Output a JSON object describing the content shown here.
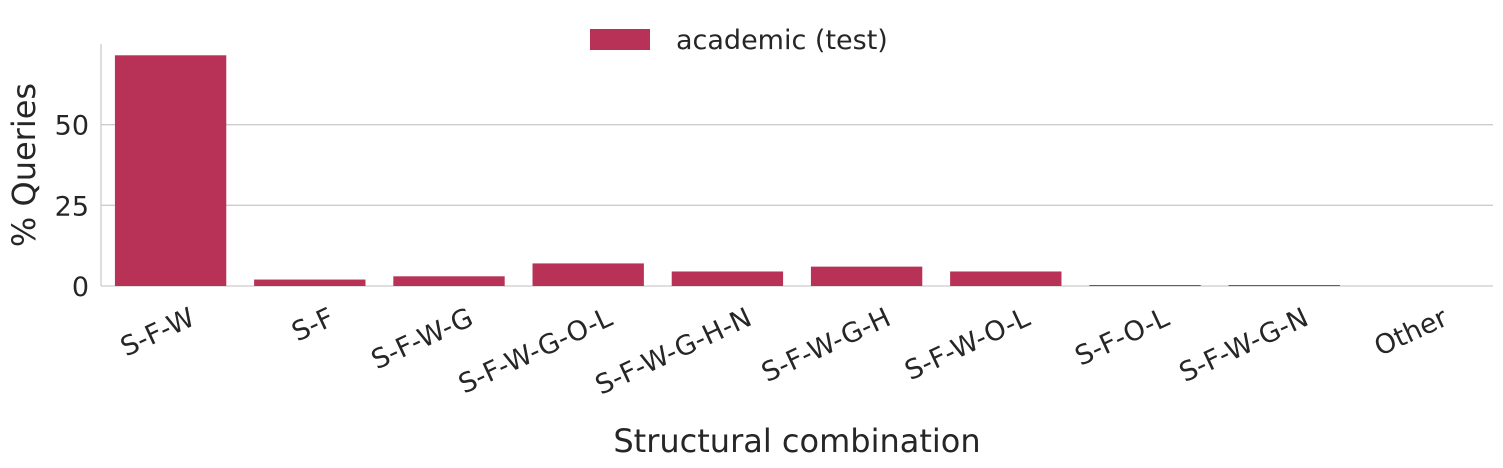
{
  "chart_data": {
    "type": "bar",
    "categories": [
      "S-F-W",
      "S-F",
      "S-F-W-G",
      "S-F-W-G-O-L",
      "S-F-W-G-H-N",
      "S-F-W-G-H",
      "S-F-W-O-L",
      "S-F-O-L",
      "S-F-W-G-N",
      "Other"
    ],
    "series": [
      {
        "name": "academic (test)",
        "values": [
          71.5,
          2.0,
          3.0,
          7.0,
          4.5,
          6.0,
          4.5,
          0.3,
          0.3,
          0.0
        ]
      }
    ],
    "xlabel": "Structural combination",
    "ylabel": "% Queries",
    "ylim": [
      0,
      75
    ],
    "yticks": [
      0,
      25,
      50
    ],
    "grid": "y",
    "legend_position": "top-center",
    "colors": {
      "bar": "#b83157",
      "grid": "#cccccc",
      "axis": "#cccccc",
      "text": "#262626"
    }
  }
}
